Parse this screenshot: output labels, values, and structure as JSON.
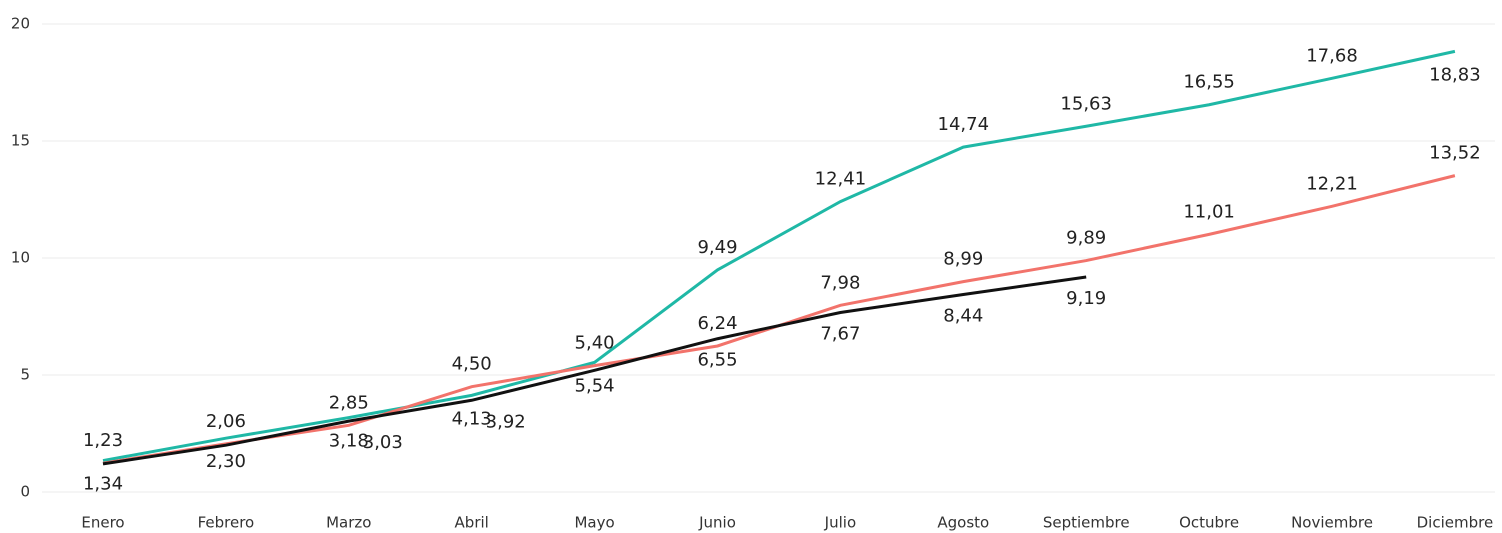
{
  "chart_data": {
    "type": "line",
    "categories": [
      "Enero",
      "Febrero",
      "Marzo",
      "Abril",
      "Mayo",
      "Junio",
      "Julio",
      "Agosto",
      "Septiembre",
      "Octubre",
      "Noviembre",
      "Diciembre"
    ],
    "series": [
      {
        "color": "#1fb8a6",
        "values": [
          1.34,
          2.3,
          3.18,
          4.13,
          5.54,
          9.49,
          12.41,
          14.74,
          15.63,
          16.55,
          17.68,
          18.83
        ],
        "value_labels": [
          "1,34",
          "2,30",
          "3,18",
          "4,13",
          "5,54",
          "9,49",
          "12,41",
          "14,74",
          "15,63",
          "16,55",
          "17,68",
          "18,83"
        ]
      },
      {
        "color": "#f2736b",
        "values": [
          1.23,
          2.06,
          2.85,
          4.5,
          5.4,
          6.24,
          7.98,
          8.99,
          9.89,
          11.01,
          12.21,
          13.52
        ],
        "value_labels": [
          "1,23",
          "2,06",
          "2,85",
          "4,50",
          "5,40",
          "6,24",
          "7,98",
          "8,99",
          "9,89",
          "11,01",
          "12,21",
          "13,52"
        ]
      },
      {
        "color": "#111111",
        "values": [
          1.2,
          2.0,
          3.03,
          3.92,
          5.2,
          6.55,
          7.67,
          8.44,
          9.19,
          null,
          null,
          null
        ],
        "value_labels": [
          null,
          null,
          "3,03",
          "3,92",
          null,
          "6,55",
          "7,67",
          "8,44",
          "9,19",
          null,
          null,
          null
        ]
      }
    ],
    "ylim": [
      0,
      20
    ],
    "yticks": [
      0,
      5,
      10,
      15,
      20
    ],
    "grid": true
  }
}
